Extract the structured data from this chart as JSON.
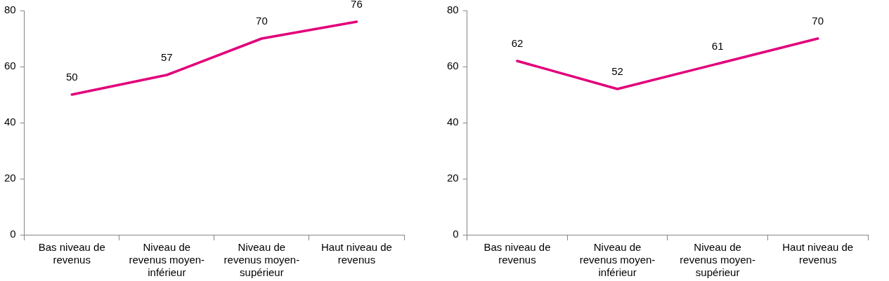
{
  "chart_data": [
    {
      "type": "line",
      "categories": [
        "Bas niveau de revenus",
        "Niveau de revenus moyen-inférieur",
        "Niveau de revenus moyen-supérieur",
        "Haut niveau de revenus"
      ],
      "series": [
        {
          "color": "#e2007a",
          "values": [
            50,
            57,
            70,
            76
          ]
        }
      ],
      "ylim": [
        0,
        80
      ],
      "yticks": [
        0,
        20,
        40,
        60,
        80
      ],
      "grid": false,
      "legend": false,
      "data_labels": true
    },
    {
      "type": "line",
      "categories": [
        "Bas niveau de revenus",
        "Niveau de revenus moyen-inférieur",
        "Niveau de revenus moyen-supérieur",
        "Haut niveau de revenus"
      ],
      "series": [
        {
          "color": "#e2007a",
          "values": [
            62,
            52,
            61,
            70
          ]
        }
      ],
      "ylim": [
        0,
        80
      ],
      "yticks": [
        0,
        20,
        40,
        60,
        80
      ],
      "grid": false,
      "legend": false,
      "data_labels": true
    }
  ]
}
